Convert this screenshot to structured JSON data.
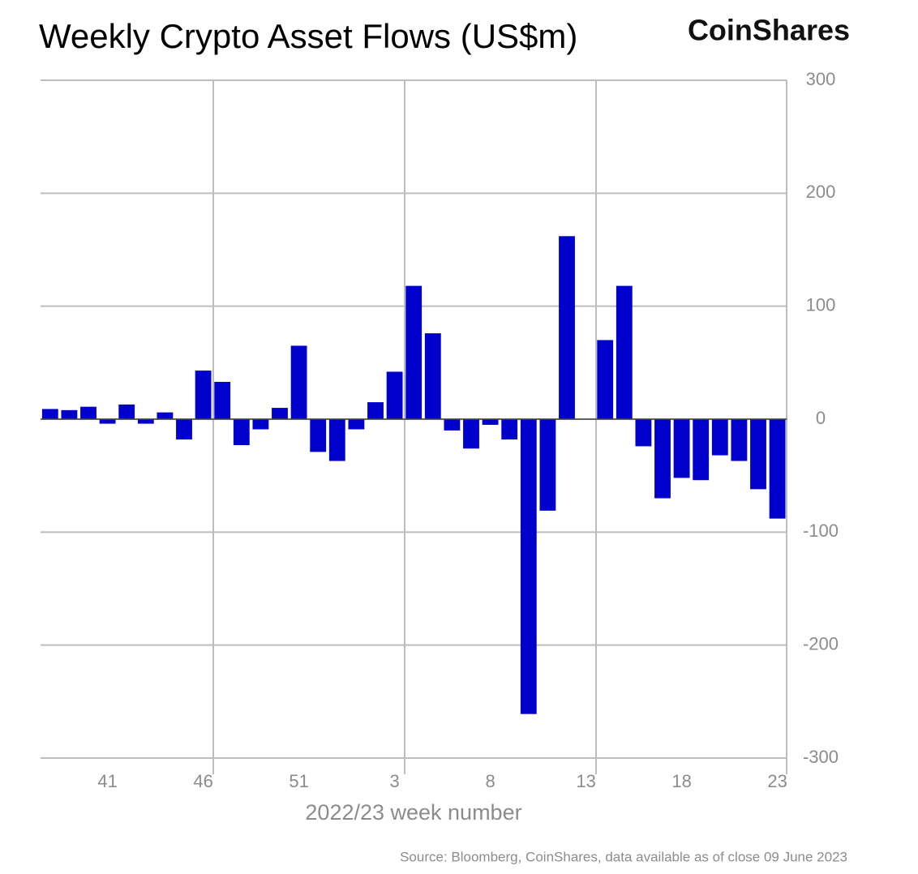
{
  "chart_data": {
    "type": "bar",
    "title": "Weekly Crypto Asset Flows (US$m)",
    "brand": "CoinShares",
    "x_label": "2022/23 week number",
    "source": "Source: Bloomberg, CoinShares, data available as of close 09 June 2023",
    "categories": [
      null,
      null,
      null,
      "41",
      null,
      null,
      null,
      null,
      "46",
      null,
      null,
      null,
      null,
      "51",
      null,
      null,
      null,
      null,
      "3",
      null,
      null,
      null,
      null,
      "8",
      null,
      null,
      null,
      null,
      "13",
      null,
      null,
      null,
      null,
      "18",
      null,
      null,
      null,
      null,
      "23"
    ],
    "values": [
      9,
      8,
      11,
      -4,
      13,
      -4,
      6,
      -18,
      43,
      33,
      -23,
      -9,
      10,
      65,
      -29,
      -37,
      -9,
      15,
      42,
      118,
      76,
      -10,
      -26,
      -5,
      -18,
      -261,
      -81,
      162,
      0,
      70,
      118,
      -24,
      -70,
      -52,
      -54,
      -32,
      -37,
      -62,
      -88
    ],
    "color": "#0000cc",
    "ylim": [
      -300,
      300
    ],
    "yticks": [
      -300,
      -200,
      -100,
      0,
      100,
      200,
      300
    ],
    "grid": true
  }
}
